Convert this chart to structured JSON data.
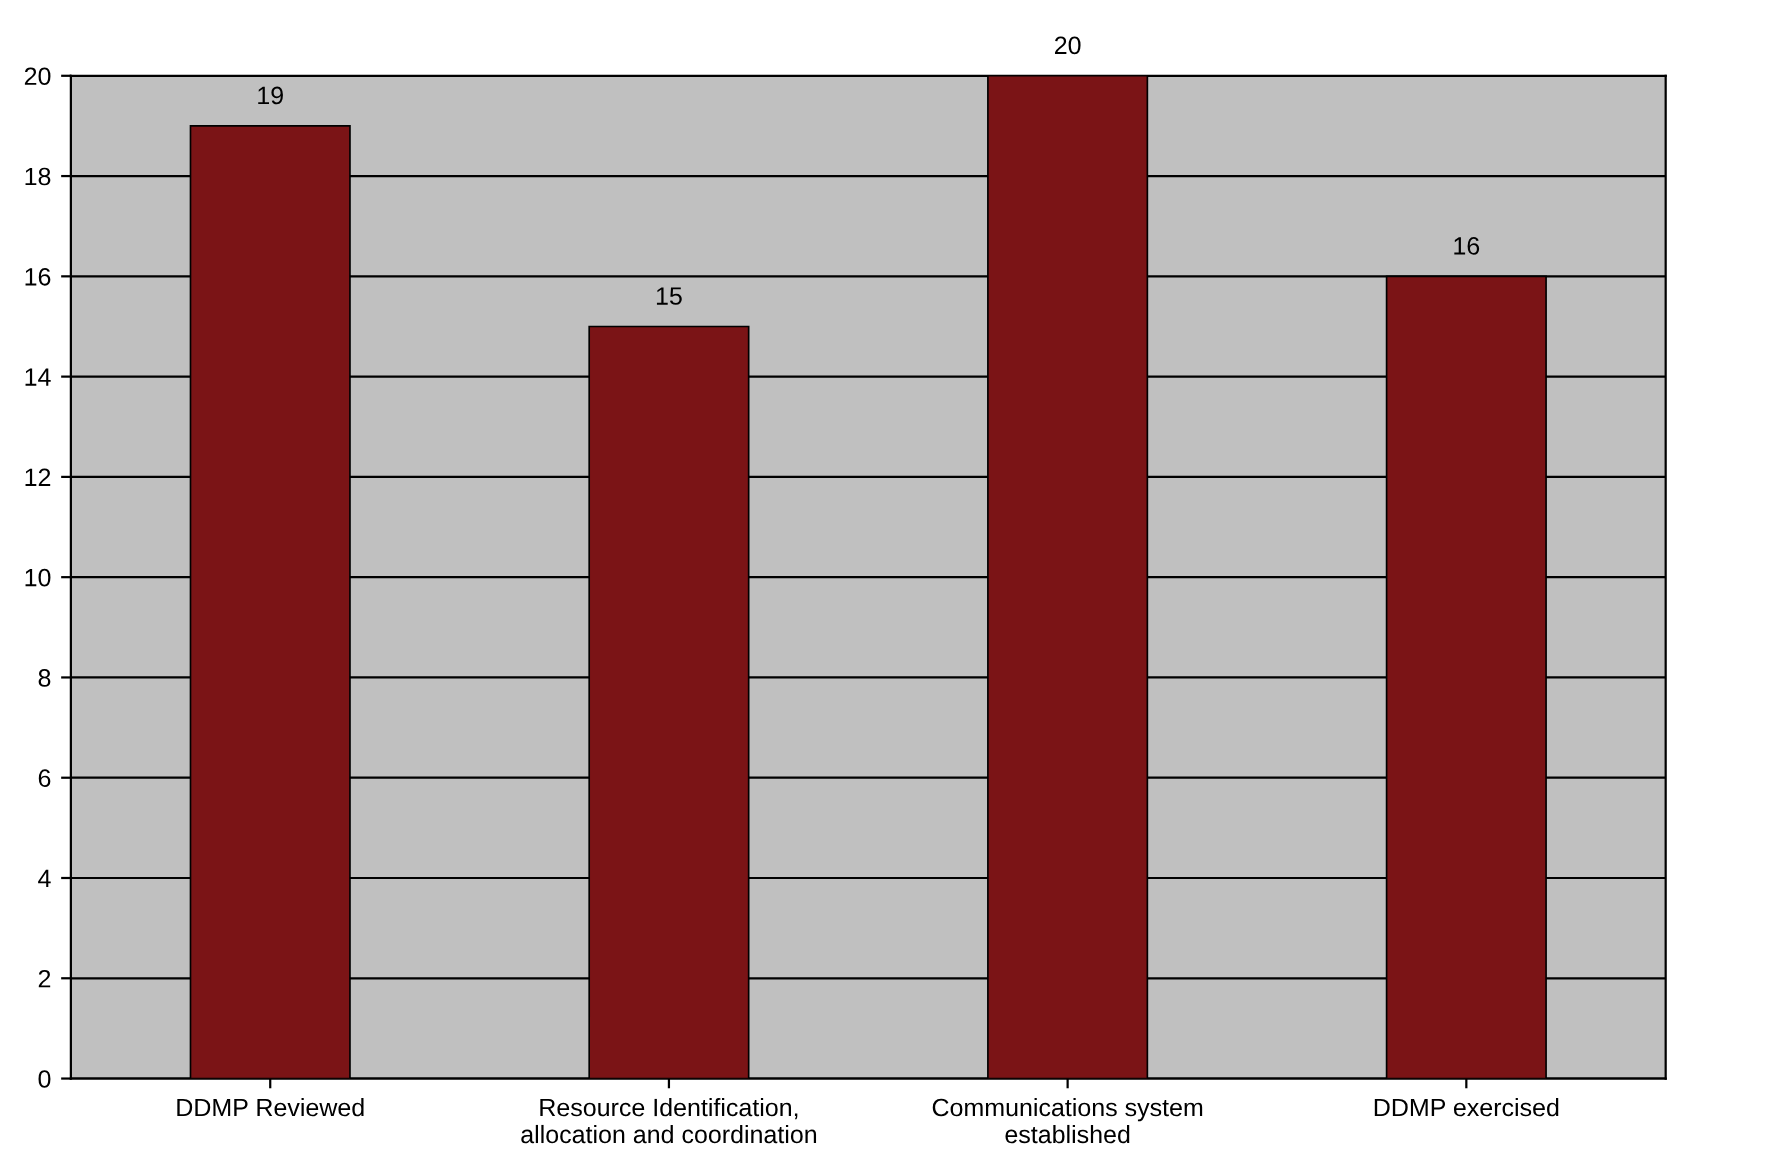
{
  "chart_data": {
    "type": "bar",
    "categories": [
      "DDMP Reviewed",
      "Resource Identification,\nallocation and coordination",
      "Communications system\nestablished",
      "DDMP exercised"
    ],
    "values": [
      19,
      15,
      20,
      16
    ],
    "color": "#7b1416",
    "ylim": [
      0,
      20
    ],
    "yticks": [
      0,
      2,
      4,
      6,
      8,
      10,
      12,
      14,
      16,
      18,
      20
    ],
    "grid": "y",
    "data_labels": true
  }
}
